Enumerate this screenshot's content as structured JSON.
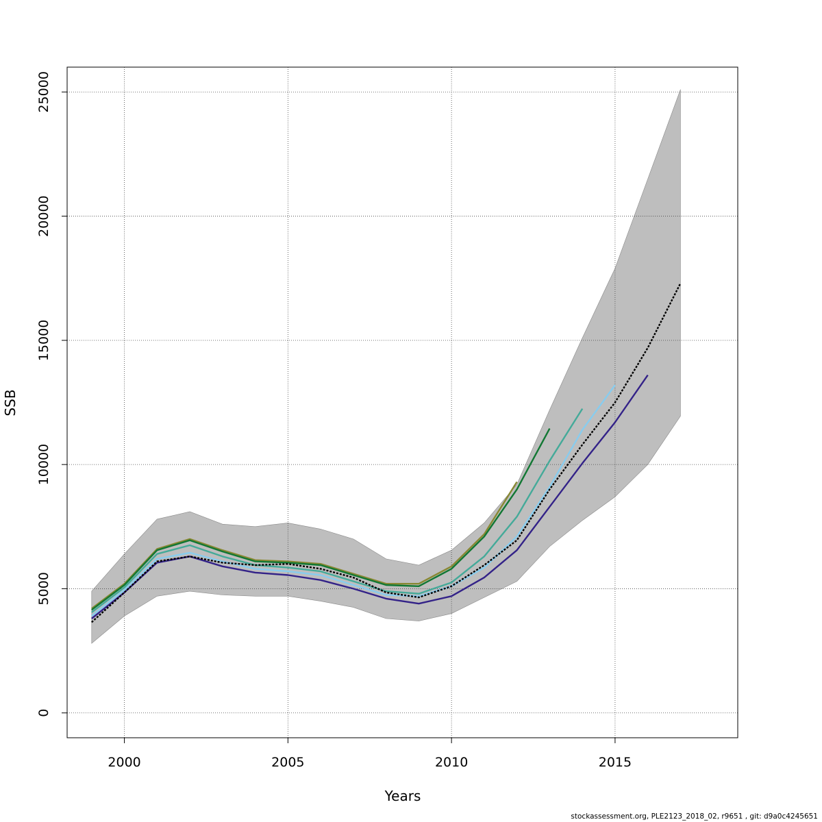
{
  "chart_data": {
    "type": "line",
    "xlabel": "Years",
    "ylabel": "SSB",
    "xlim": [
      1998.25,
      2018.75
    ],
    "ylim": [
      -1000,
      26000
    ],
    "x_ticks": [
      2000,
      2005,
      2010,
      2015
    ],
    "y_ticks": [
      0,
      5000,
      10000,
      15000,
      20000,
      25000
    ],
    "grid": true,
    "confidence_band": {
      "color": "#bebebe",
      "x": [
        1999,
        2000,
        2001,
        2002,
        2003,
        2004,
        2005,
        2006,
        2007,
        2008,
        2009,
        2010,
        2011,
        2012,
        2013,
        2014,
        2015,
        2016,
        2017
      ],
      "upper": [
        4900,
        6400,
        7800,
        8100,
        7600,
        7500,
        7650,
        7400,
        7000,
        6200,
        5950,
        6550,
        7650,
        9200,
        12200,
        15100,
        17900,
        21500,
        25100
      ],
      "lower": [
        2800,
        3900,
        4700,
        4900,
        4750,
        4700,
        4700,
        4500,
        4250,
        3800,
        3700,
        4000,
        4650,
        5300,
        6700,
        7750,
        8700,
        10000,
        11950
      ]
    },
    "series": [
      {
        "color": "#888833",
        "dashed": false,
        "x": [
          1999,
          2000,
          2001,
          2002,
          2003,
          2004,
          2005,
          2006,
          2007,
          2008,
          2009,
          2010,
          2011,
          2012
        ],
        "values": [
          4200,
          5200,
          6600,
          7000,
          6550,
          6150,
          6100,
          6000,
          5600,
          5200,
          5200,
          5900,
          7200,
          9300
        ]
      },
      {
        "color": "#117733",
        "dashed": false,
        "x": [
          1999,
          2000,
          2001,
          2002,
          2003,
          2004,
          2005,
          2006,
          2007,
          2008,
          2009,
          2010,
          2011,
          2012,
          2013
        ],
        "values": [
          4150,
          5150,
          6550,
          6950,
          6500,
          6100,
          6050,
          5950,
          5550,
          5150,
          5100,
          5800,
          7100,
          9000,
          11450
        ]
      },
      {
        "color": "#44aa99",
        "dashed": false,
        "x": [
          1999,
          2000,
          2001,
          2002,
          2003,
          2004,
          2005,
          2006,
          2007,
          2008,
          2009,
          2010,
          2011,
          2012,
          2013,
          2014
        ],
        "values": [
          4050,
          5050,
          6400,
          6750,
          6300,
          5950,
          5850,
          5700,
          5300,
          4900,
          4800,
          5250,
          6300,
          7900,
          10150,
          12250
        ]
      },
      {
        "color": "#88ccee",
        "dashed": false,
        "x": [
          1999,
          2000,
          2001,
          2002,
          2003,
          2004,
          2005,
          2006,
          2007,
          2008,
          2009,
          2010,
          2011,
          2012,
          2013,
          2014,
          2015
        ],
        "values": [
          3900,
          4950,
          6200,
          6450,
          6100,
          5800,
          5700,
          5550,
          5150,
          4750,
          4700,
          5100,
          5850,
          7100,
          9100,
          11400,
          13200
        ]
      },
      {
        "color": "#332288",
        "dashed": false,
        "x": [
          1999,
          2000,
          2001,
          2002,
          2003,
          2004,
          2005,
          2006,
          2007,
          2008,
          2009,
          2010,
          2011,
          2012,
          2013,
          2014,
          2015,
          2016
        ],
        "values": [
          3800,
          4850,
          6050,
          6300,
          5900,
          5650,
          5550,
          5350,
          5000,
          4600,
          4400,
          4700,
          5450,
          6550,
          8300,
          10050,
          11700,
          13600
        ]
      },
      {
        "color": "#000000",
        "dashed": true,
        "x": [
          1999,
          2000,
          2001,
          2002,
          2003,
          2004,
          2005,
          2006,
          2007,
          2008,
          2009,
          2010,
          2011,
          2012,
          2013,
          2014,
          2015,
          2016,
          2017
        ],
        "values": [
          3650,
          4850,
          6100,
          6300,
          6050,
          5950,
          6000,
          5800,
          5450,
          4850,
          4650,
          5100,
          5950,
          6950,
          9000,
          10800,
          12500,
          14700,
          17300
        ]
      }
    ]
  },
  "footer": "stockassessment.org, PLE2123_2018_02, r9651 , git: d9a0c4245651"
}
